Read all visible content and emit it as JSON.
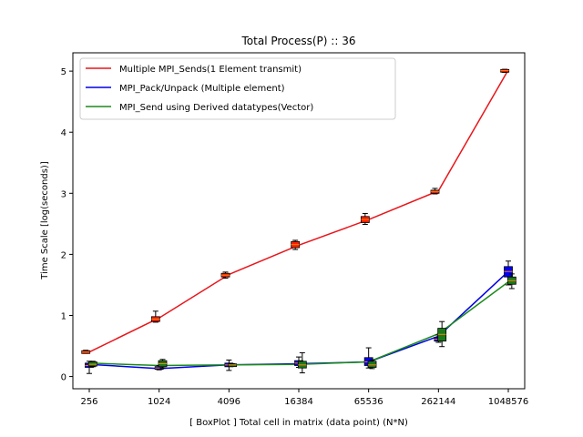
{
  "chart_data": {
    "type": "box",
    "title": "Total Process(P) :: 36",
    "xlabel": "[ BoxPlot ] Total cell in matrix (data point) (N*N)",
    "ylabel": "Time Scale [log(seconds)]",
    "categories": [
      "256",
      "1024",
      "4096",
      "16384",
      "65536",
      "262144",
      "1048576"
    ],
    "ylim": [
      -0.2,
      5.3
    ],
    "yticks": [
      "0",
      "1",
      "2",
      "3",
      "4",
      "5"
    ],
    "grid": false,
    "legend_position": "top-left",
    "series": [
      {
        "name": "Multiple MPI_Sends(1 Element transmit)",
        "color": "#e8161b",
        "box_color": "#ff1f00",
        "offset": -0.25,
        "line_values": [
          0.4,
          0.96,
          1.67,
          2.15,
          2.57,
          3.04,
          5.02
        ],
        "boxes": [
          {
            "whisker_low": 0.38,
            "q1": 0.38,
            "median": 0.4,
            "q3": 0.42,
            "whisker_high": 0.43
          },
          {
            "whisker_low": 0.89,
            "q1": 0.9,
            "median": 0.94,
            "q3": 0.98,
            "whisker_high": 1.07
          },
          {
            "whisker_low": 1.61,
            "q1": 1.63,
            "median": 1.66,
            "q3": 1.69,
            "whisker_high": 1.71
          },
          {
            "whisker_low": 2.08,
            "q1": 2.11,
            "median": 2.16,
            "q3": 2.21,
            "whisker_high": 2.23
          },
          {
            "whisker_low": 2.49,
            "q1": 2.52,
            "median": 2.57,
            "q3": 2.62,
            "whisker_high": 2.67
          },
          {
            "whisker_low": 2.99,
            "q1": 3.0,
            "median": 3.03,
            "q3": 3.05,
            "whisker_high": 3.08
          },
          {
            "whisker_low": 4.98,
            "q1": 4.99,
            "median": 5.01,
            "q3": 5.02,
            "whisker_high": 5.03
          }
        ]
      },
      {
        "name": "MPI_Pack/Unpack (Multiple element)",
        "color": "#0000e6",
        "box_color": "#0000ff",
        "offset": 0.0,
        "line_values": [
          0.2,
          0.13,
          0.19,
          0.21,
          0.24,
          0.66,
          1.72
        ],
        "boxes": [
          {
            "whisker_low": 0.05,
            "q1": 0.15,
            "median": 0.18,
            "q3": 0.22,
            "whisker_high": 0.25
          },
          {
            "whisker_low": 0.11,
            "q1": 0.12,
            "median": 0.14,
            "q3": 0.16,
            "whisker_high": 0.18
          },
          {
            "whisker_low": 0.1,
            "q1": 0.16,
            "median": 0.19,
            "q3": 0.22,
            "whisker_high": 0.27
          },
          {
            "whisker_low": 0.15,
            "q1": 0.18,
            "median": 0.22,
            "q3": 0.26,
            "whisker_high": 0.32
          },
          {
            "whisker_low": 0.14,
            "q1": 0.18,
            "median": 0.24,
            "q3": 0.31,
            "whisker_high": 0.47
          },
          {
            "whisker_low": 0.56,
            "q1": 0.58,
            "median": 0.61,
            "q3": 0.64,
            "whisker_high": 0.68
          },
          {
            "whisker_low": 1.5,
            "q1": 1.63,
            "median": 1.72,
            "q3": 1.8,
            "whisker_high": 1.89
          }
        ]
      },
      {
        "name": "MPI_Send using Derived datatypes(Vector)",
        "color": "#1a8a1a",
        "box_color": "#1a7a1a",
        "offset": 0.25,
        "line_values": [
          0.22,
          0.18,
          0.19,
          0.2,
          0.24,
          0.7,
          1.55
        ],
        "boxes": [
          {
            "whisker_low": 0.16,
            "q1": 0.17,
            "median": 0.2,
            "q3": 0.24,
            "whisker_high": 0.25
          },
          {
            "whisker_low": 0.14,
            "q1": 0.16,
            "median": 0.21,
            "q3": 0.26,
            "whisker_high": 0.28
          },
          {
            "whisker_low": 0.17,
            "q1": 0.17,
            "median": 0.19,
            "q3": 0.2,
            "whisker_high": 0.21
          },
          {
            "whisker_low": 0.06,
            "q1": 0.14,
            "median": 0.19,
            "q3": 0.25,
            "whisker_high": 0.39
          },
          {
            "whisker_low": 0.13,
            "q1": 0.15,
            "median": 0.19,
            "q3": 0.25,
            "whisker_high": 0.27
          },
          {
            "whisker_low": 0.49,
            "q1": 0.58,
            "median": 0.69,
            "q3": 0.79,
            "whisker_high": 0.9
          },
          {
            "whisker_low": 1.44,
            "q1": 1.51,
            "median": 1.57,
            "q3": 1.63,
            "whisker_high": 1.68
          }
        ]
      }
    ]
  }
}
